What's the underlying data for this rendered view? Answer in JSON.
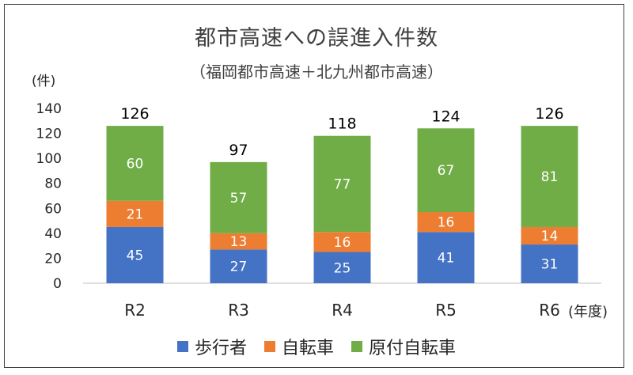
{
  "chart_data": {
    "type": "bar",
    "stacked": true,
    "title": "都市高速への誤進入件数",
    "subtitle": "（福岡都市高速＋北九州都市高速）",
    "ylabel": "(件)",
    "xlabel": "(年度)",
    "categories": [
      "R2",
      "R3",
      "R4",
      "R5",
      "R6"
    ],
    "series": [
      {
        "name": "歩行者",
        "values": [
          45,
          27,
          25,
          41,
          31
        ],
        "color": "#4472C4"
      },
      {
        "name": "自転車",
        "values": [
          21,
          13,
          16,
          16,
          14
        ],
        "color": "#ED7D31"
      },
      {
        "name": "原付自転車",
        "values": [
          60,
          57,
          77,
          67,
          81
        ],
        "color": "#70AD47"
      }
    ],
    "totals": [
      126,
      97,
      118,
      124,
      126
    ],
    "ylim": [
      0,
      140
    ],
    "yticks": [
      0,
      20,
      40,
      60,
      80,
      100,
      120,
      140
    ],
    "grid": false,
    "legend_position": "bottom"
  }
}
